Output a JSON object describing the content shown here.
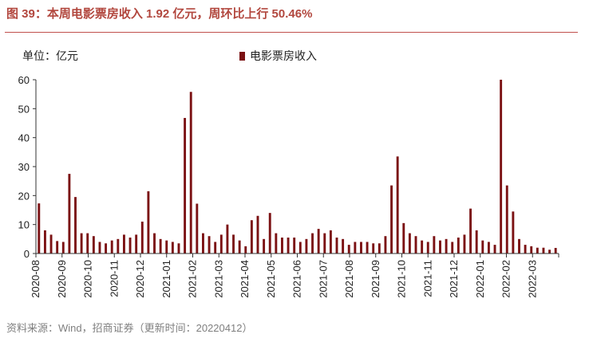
{
  "header": {
    "title": "图 39：本周电影票房收入 1.92 亿元，周环比上行 50.46%"
  },
  "footer": {
    "source": "资料来源：Wind，招商证券（更新时间：20220412）"
  },
  "colors": {
    "title": "#b2473e",
    "bar": "#7b1113",
    "rule": "#c0504d"
  },
  "chart_data": {
    "type": "bar",
    "title": "",
    "unit_label": "单位：亿元",
    "xlabel": "",
    "ylabel": "",
    "ylim": [
      0,
      60
    ],
    "yticks": [
      "0",
      "10",
      "20",
      "30",
      "40",
      "50",
      "60"
    ],
    "xticks": [
      "2020-08",
      "2020-09",
      "2020-10",
      "2020-11",
      "2020-12",
      "2021-01",
      "2021-02",
      "2021-03",
      "2021-04",
      "2021-05",
      "2021-06",
      "2021-07",
      "2021-08",
      "2021-09",
      "2021-10",
      "2021-11",
      "2021-12",
      "2022-01",
      "2022-02",
      "2022-03"
    ],
    "series": [
      {
        "name": "电影票房收入",
        "values": [
          17.3,
          8.0,
          6.5,
          4.3,
          4.0,
          27.5,
          19.5,
          7.0,
          7.0,
          6.0,
          4.0,
          3.5,
          4.5,
          5.0,
          6.5,
          5.5,
          6.5,
          11.0,
          21.5,
          7.0,
          5.0,
          4.5,
          4.0,
          3.5,
          46.8,
          55.8,
          17.2,
          7.0,
          6.0,
          4.0,
          6.5,
          10.0,
          6.5,
          4.5,
          2.5,
          11.5,
          13.0,
          5.0,
          14.0,
          7.0,
          5.5,
          5.5,
          5.5,
          4.0,
          5.0,
          7.0,
          8.5,
          7.0,
          8.0,
          5.5,
          5.0,
          3.0,
          4.0,
          4.0,
          4.0,
          3.5,
          3.5,
          6.0,
          23.5,
          33.5,
          10.5,
          7.0,
          6.0,
          4.5,
          4.0,
          6.0,
          4.5,
          5.0,
          4.0,
          5.5,
          6.5,
          15.5,
          8.0,
          4.5,
          4.0,
          3.0,
          60.0,
          23.5,
          14.5,
          5.0,
          3.0,
          2.5,
          2.0,
          2.0,
          1.3,
          1.92
        ]
      }
    ],
    "legend": "top"
  }
}
